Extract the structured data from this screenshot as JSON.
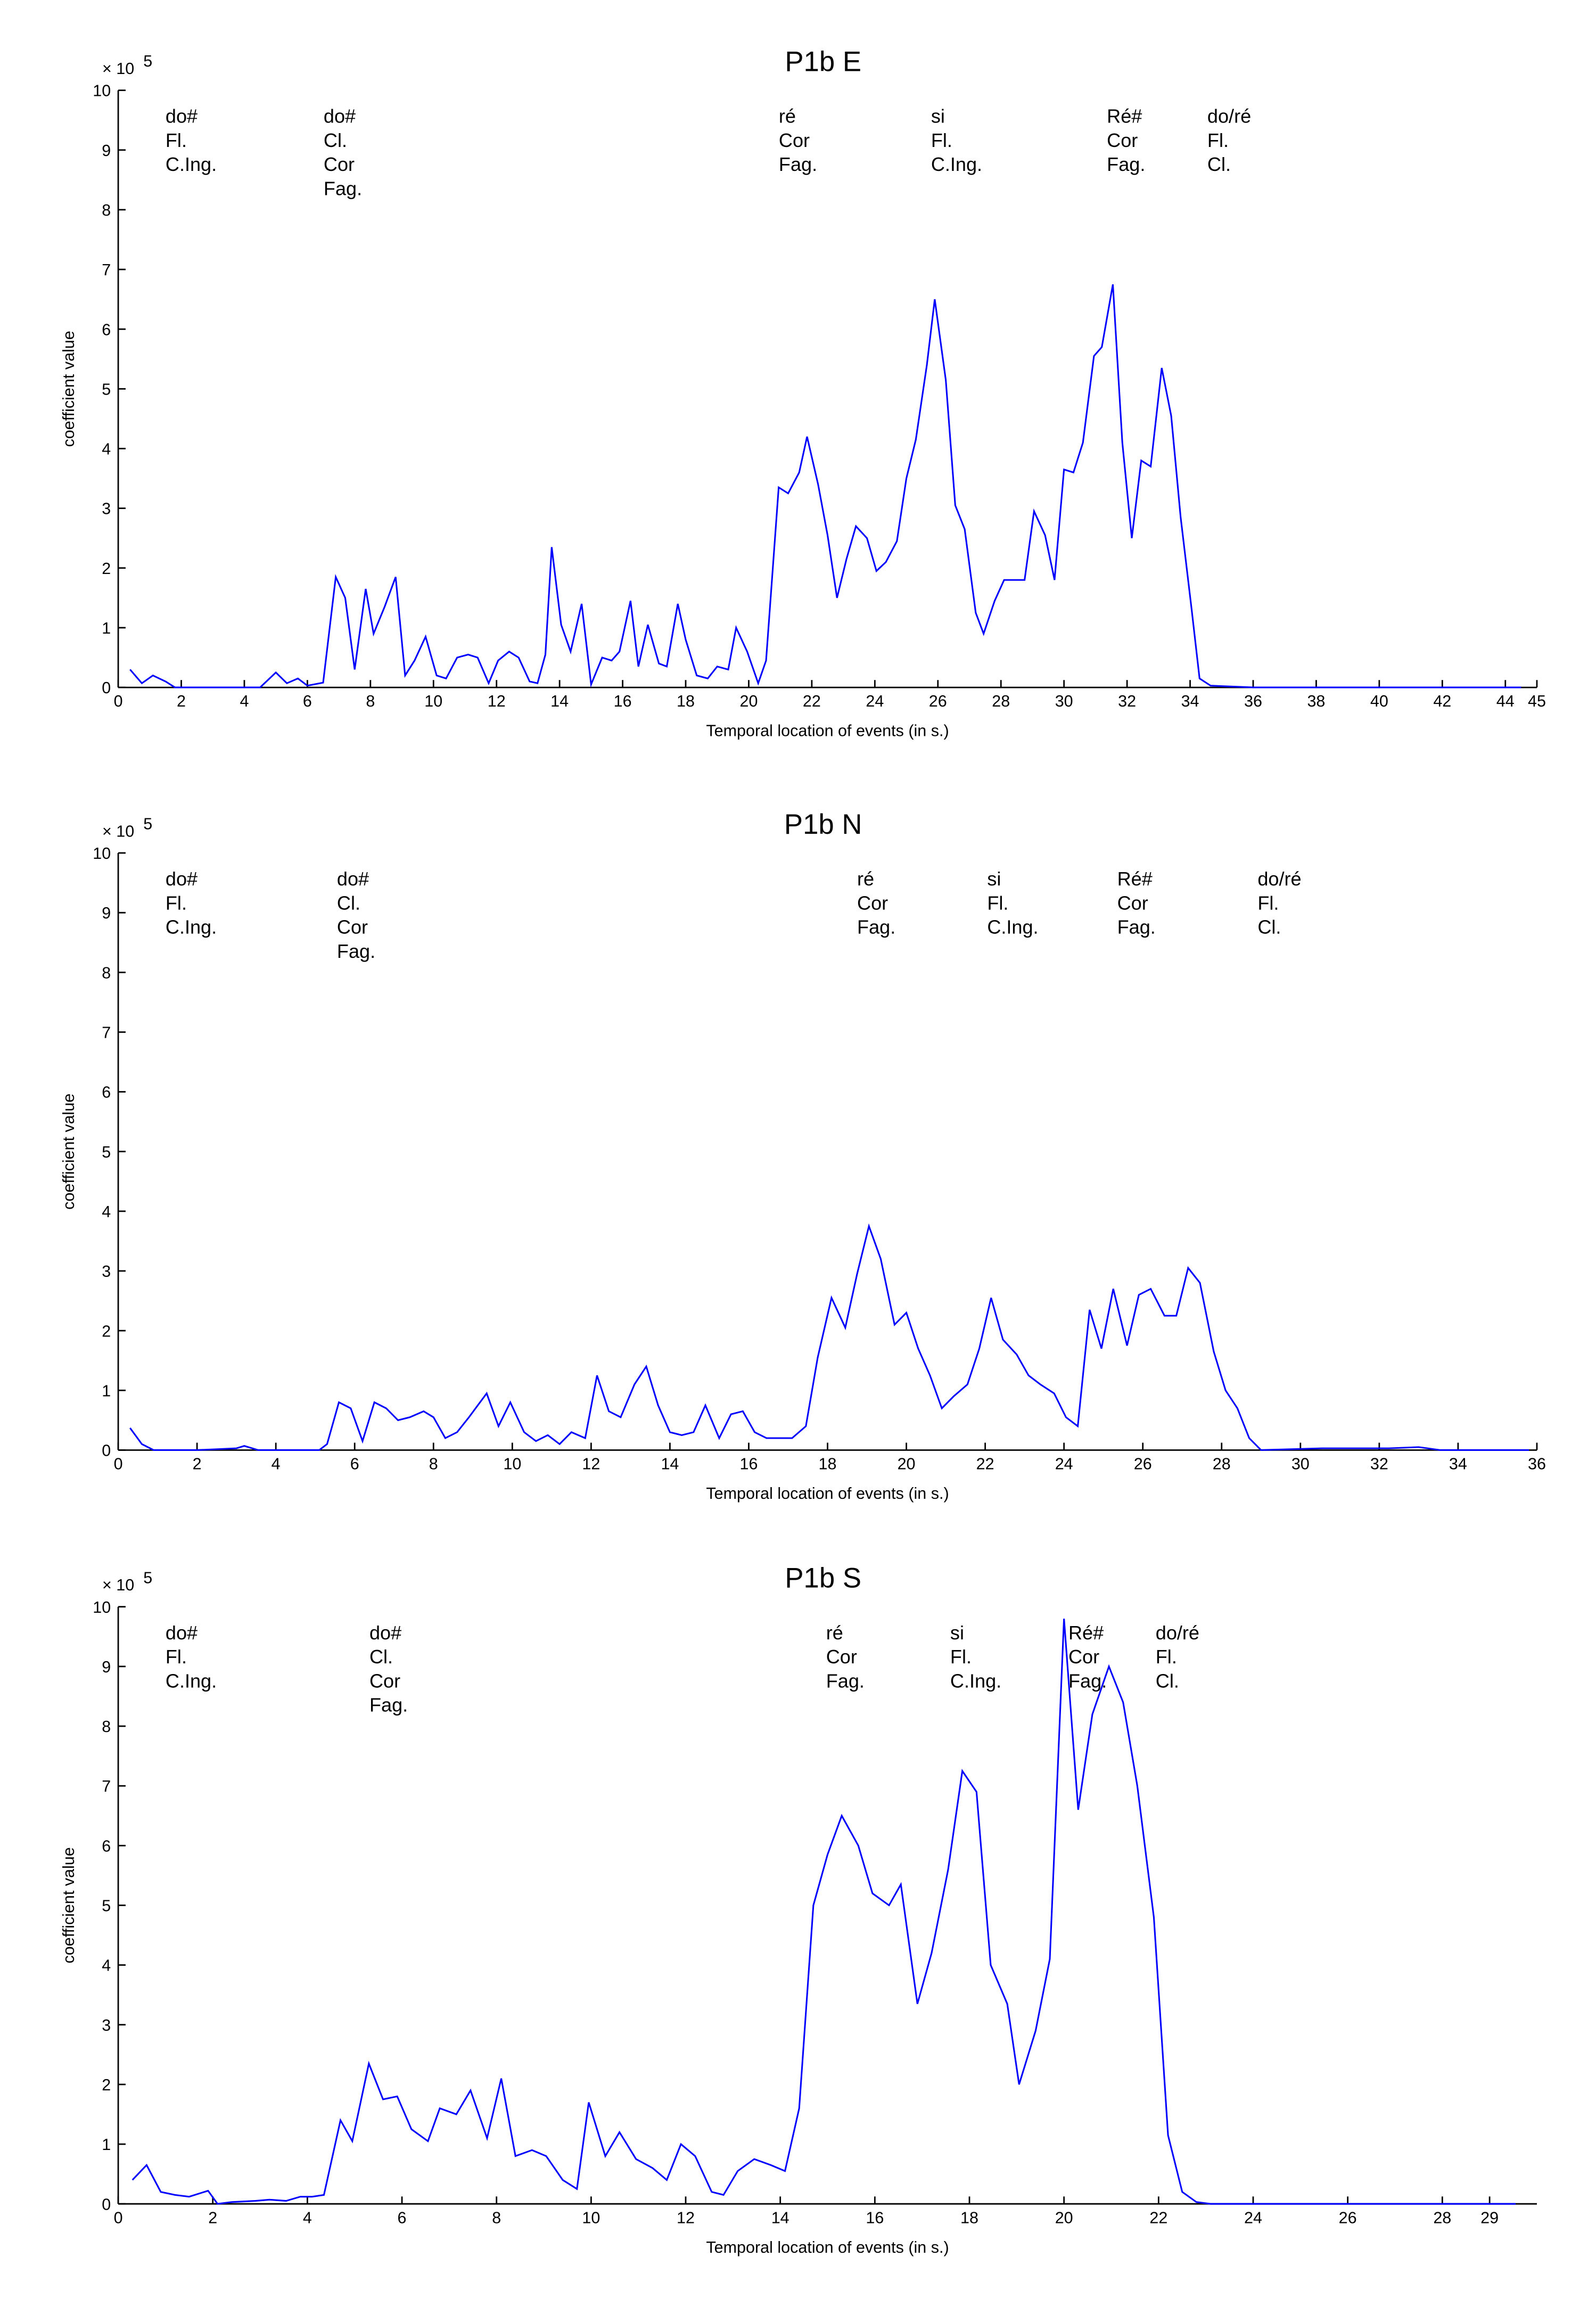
{
  "chart_data": [
    {
      "type": "line",
      "title": "P1b E",
      "xlabel": "Temporal location of events (in s.)",
      "ylabel": "coefficient value",
      "y_scale_label": "× 10",
      "y_scale_exponent": "5",
      "xlim": [
        0,
        45
      ],
      "ylim": [
        0,
        10
      ],
      "xticks": [
        0,
        2,
        4,
        6,
        8,
        10,
        12,
        14,
        16,
        18,
        20,
        22,
        24,
        26,
        28,
        30,
        32,
        34,
        36,
        38,
        40,
        42,
        44,
        45
      ],
      "yticks": [
        0,
        1,
        2,
        3,
        4,
        5,
        6,
        7,
        8,
        9,
        10
      ],
      "annotations": [
        {
          "lines": [
            "do#",
            "Fl.",
            "C.Ing."
          ]
        },
        {
          "lines": [
            "do#",
            "Cl.",
            "Cor",
            "Fag."
          ]
        },
        {
          "lines": [
            "ré",
            "Cor",
            "Fag."
          ]
        },
        {
          "lines": [
            "si",
            "Fl.",
            "C.Ing."
          ]
        },
        {
          "lines": [
            "Ré#",
            "Cor",
            "Fag."
          ]
        },
        {
          "lines": [
            "do/ré",
            "Fl.",
            "Cl."
          ]
        }
      ],
      "x": [
        0.375,
        0.75,
        1.1,
        1.5,
        1.8,
        2.5,
        3.5,
        4.5,
        5,
        5.35,
        5.7,
        6,
        6.5,
        6.9,
        7.2,
        7.5,
        7.85,
        8.1,
        8.45,
        8.8,
        9.1,
        9.4,
        9.75,
        10.1,
        10.4,
        10.75,
        11.1,
        11.4,
        11.75,
        12.05,
        12.4,
        12.7,
        13.05,
        13.3,
        13.55,
        13.75,
        14.05,
        14.35,
        14.7,
        15,
        15.35,
        15.65,
        15.9,
        16.25,
        16.5,
        16.8,
        17.15,
        17.4,
        17.75,
        18,
        18.35,
        18.7,
        19,
        19.35,
        19.6,
        19.95,
        20.3,
        20.55,
        20.95,
        21.25,
        21.6,
        21.85,
        22.2,
        22.5,
        22.8,
        23.1,
        23.4,
        23.75,
        24.05,
        24.35,
        24.7,
        25,
        25.3,
        25.65,
        25.9,
        26.25,
        26.55,
        26.85,
        27.2,
        27.45,
        27.8,
        28.1,
        28.45,
        28.75,
        29.05,
        29.4,
        29.7,
        30,
        30.3,
        30.6,
        30.95,
        31.2,
        31.55,
        31.85,
        32.15,
        32.45,
        32.75,
        33.1,
        33.4,
        33.7,
        34.05,
        34.3,
        34.65,
        36,
        38,
        40,
        42,
        44.5
      ],
      "series": [
        {
          "color": "#0000ff",
          "values": [
            0.3,
            0.07,
            0.2,
            0.1,
            0,
            0,
            0,
            0,
            0.25,
            0.07,
            0.15,
            0.03,
            0.08,
            1.85,
            1.5,
            0.3,
            1.65,
            0.9,
            1.35,
            1.85,
            0.2,
            0.45,
            0.85,
            0.2,
            0.15,
            0.5,
            0.55,
            0.5,
            0.07,
            0.45,
            0.6,
            0.5,
            0.1,
            0.07,
            0.55,
            2.35,
            1.05,
            0.6,
            1.4,
            0.05,
            0.5,
            0.45,
            0.6,
            1.45,
            0.35,
            1.05,
            0.4,
            0.35,
            1.4,
            0.8,
            0.2,
            0.15,
            0.35,
            0.3,
            1.0,
            0.6,
            0.07,
            0.45,
            3.35,
            3.25,
            3.6,
            4.2,
            3.4,
            2.55,
            1.5,
            2.15,
            2.7,
            2.5,
            1.95,
            2.1,
            2.45,
            3.5,
            4.15,
            5.4,
            6.5,
            5.15,
            3.05,
            2.65,
            1.25,
            0.9,
            1.45,
            1.8,
            1.8,
            1.8,
            2.95,
            2.55,
            1.8,
            3.65,
            3.6,
            4.1,
            5.55,
            5.7,
            6.75,
            4.1,
            2.5,
            3.8,
            3.7,
            5.35,
            4.55,
            2.85,
            1.3,
            0.15,
            0.03,
            0,
            0,
            0,
            0,
            0
          ]
        }
      ]
    },
    {
      "type": "line",
      "title": "P1b N",
      "xlabel": "Temporal location of events (in s.)",
      "ylabel": "coefficient value",
      "y_scale_label": "× 10",
      "y_scale_exponent": "5",
      "xlim": [
        0,
        36
      ],
      "ylim": [
        0,
        10
      ],
      "xticks": [
        0,
        2,
        4,
        6,
        8,
        10,
        12,
        14,
        16,
        18,
        20,
        22,
        24,
        26,
        28,
        30,
        32,
        34,
        36
      ],
      "yticks": [
        0,
        1,
        2,
        3,
        4,
        5,
        6,
        7,
        8,
        9,
        10
      ],
      "annotations": [
        {
          "lines": [
            "do#",
            "Fl.",
            "C.Ing."
          ]
        },
        {
          "lines": [
            "do#",
            "Cl.",
            "Cor",
            "Fag."
          ]
        },
        {
          "lines": [
            "ré",
            "Cor",
            "Fag."
          ]
        },
        {
          "lines": [
            "si",
            "Fl.",
            "C.Ing."
          ]
        },
        {
          "lines": [
            "Ré#",
            "Cor",
            "Fag."
          ]
        },
        {
          "lines": [
            "do/ré",
            "Fl.",
            "Cl."
          ]
        }
      ],
      "x": [
        0.3,
        0.6,
        0.9,
        2,
        3,
        3.2,
        3.55,
        4.5,
        5.1,
        5.3,
        5.6,
        5.9,
        6.2,
        6.5,
        6.8,
        7.1,
        7.4,
        7.75,
        8,
        8.3,
        8.6,
        8.9,
        9.35,
        9.65,
        9.95,
        10.3,
        10.6,
        10.9,
        11.2,
        11.5,
        11.85,
        12.15,
        12.45,
        12.75,
        13.1,
        13.4,
        13.7,
        14,
        14.3,
        14.6,
        14.9,
        15.25,
        15.55,
        15.85,
        16.15,
        16.45,
        16.8,
        17.1,
        17.45,
        17.75,
        18.1,
        18.45,
        18.75,
        19.05,
        19.35,
        19.7,
        20,
        20.3,
        20.6,
        20.9,
        21.2,
        21.55,
        21.85,
        22.15,
        22.45,
        22.8,
        23.1,
        23.4,
        23.75,
        24.05,
        24.35,
        24.65,
        24.95,
        25.25,
        25.6,
        25.9,
        26.2,
        26.55,
        26.85,
        27.15,
        27.45,
        27.8,
        28.1,
        28.4,
        28.7,
        29,
        30.55,
        32.25,
        33,
        33.55,
        35.8
      ],
      "series": [
        {
          "color": "#0000ff",
          "values": [
            0.37,
            0.1,
            0,
            0,
            0.03,
            0.07,
            0,
            0,
            0,
            0.1,
            0.8,
            0.7,
            0.15,
            0.8,
            0.7,
            0.5,
            0.55,
            0.65,
            0.55,
            0.2,
            0.3,
            0.55,
            0.95,
            0.4,
            0.8,
            0.3,
            0.15,
            0.25,
            0.1,
            0.3,
            0.2,
            1.25,
            0.65,
            0.55,
            1.1,
            1.4,
            0.75,
            0.3,
            0.25,
            0.3,
            0.75,
            0.2,
            0.6,
            0.65,
            0.3,
            0.2,
            0.2,
            0.2,
            0.4,
            1.55,
            2.55,
            2.05,
            2.95,
            3.75,
            3.2,
            2.1,
            2.3,
            1.7,
            1.25,
            0.7,
            0.9,
            1.1,
            1.7,
            2.55,
            1.85,
            1.6,
            1.25,
            1.1,
            0.95,
            0.55,
            0.4,
            2.35,
            1.7,
            2.7,
            1.75,
            2.6,
            2.7,
            2.25,
            2.25,
            3.05,
            2.8,
            1.65,
            1.0,
            0.7,
            0.2,
            0,
            0.03,
            0.03,
            0.05,
            0,
            0
          ]
        }
      ]
    },
    {
      "type": "line",
      "title": "P1b S",
      "xlabel": "Temporal location of events (in s.)",
      "ylabel": "coefficient value",
      "y_scale_label": "× 10",
      "y_scale_exponent": "5",
      "xlim": [
        0,
        30
      ],
      "ylim": [
        0,
        10
      ],
      "xticks": [
        0,
        2,
        4,
        6,
        8,
        10,
        12,
        14,
        16,
        18,
        20,
        22,
        24,
        26,
        28,
        29
      ],
      "yticks": [
        0,
        1,
        2,
        3,
        4,
        5,
        6,
        7,
        8,
        9,
        10
      ],
      "annotations": [
        {
          "lines": [
            "do#",
            "Fl.",
            "C.Ing."
          ]
        },
        {
          "lines": [
            "do#",
            "Cl.",
            "Cor",
            "Fag."
          ]
        },
        {
          "lines": [
            "ré",
            "Cor",
            "Fag."
          ]
        },
        {
          "lines": [
            "si",
            "Fl.",
            "C.Ing."
          ]
        },
        {
          "lines": [
            "Ré#",
            "Cor",
            "Fag."
          ]
        },
        {
          "lines": [
            "do/ré",
            "Fl.",
            "Cl."
          ]
        }
      ],
      "x": [
        0.3,
        0.6,
        0.9,
        1.2,
        1.5,
        1.9,
        2.1,
        2.4,
        2.9,
        3.2,
        3.55,
        3.85,
        4.1,
        4.35,
        4.7,
        4.95,
        5.3,
        5.6,
        5.9,
        6.2,
        6.55,
        6.8,
        7.15,
        7.45,
        7.8,
        8.1,
        8.4,
        8.75,
        9.05,
        9.4,
        9.7,
        9.95,
        10.3,
        10.6,
        10.95,
        11.3,
        11.6,
        11.9,
        12.2,
        12.55,
        12.8,
        13.1,
        13.45,
        13.8,
        14.1,
        14.4,
        14.7,
        15,
        15.3,
        15.65,
        15.95,
        16.3,
        16.55,
        16.9,
        17.2,
        17.55,
        17.85,
        18.15,
        18.45,
        18.8,
        19.05,
        19.4,
        19.7,
        20,
        20.3,
        20.6,
        20.95,
        21.25,
        21.55,
        21.9,
        22.2,
        22.5,
        22.8,
        23.1,
        26,
        29.55
      ],
      "series": [
        {
          "color": "#0000ff",
          "values": [
            0.4,
            0.65,
            0.2,
            0.15,
            0.12,
            0.22,
            0,
            0.03,
            0.05,
            0.07,
            0.05,
            0.12,
            0.12,
            0.15,
            1.4,
            1.05,
            2.35,
            1.75,
            1.8,
            1.25,
            1.05,
            1.6,
            1.5,
            1.9,
            1.1,
            2.1,
            0.8,
            0.9,
            0.8,
            0.4,
            0.25,
            1.7,
            0.8,
            1.2,
            0.75,
            0.6,
            0.4,
            1.0,
            0.8,
            0.2,
            0.15,
            0.55,
            0.75,
            0.65,
            0.55,
            1.6,
            5.0,
            5.85,
            6.5,
            6.0,
            5.2,
            5.0,
            5.35,
            3.35,
            4.2,
            5.6,
            7.25,
            6.9,
            4.0,
            3.35,
            2.0,
            2.9,
            4.1,
            9.8,
            6.6,
            8.2,
            9.0,
            8.4,
            7.0,
            4.8,
            1.15,
            0.2,
            0.03,
            0,
            0,
            0
          ]
        }
      ]
    }
  ]
}
